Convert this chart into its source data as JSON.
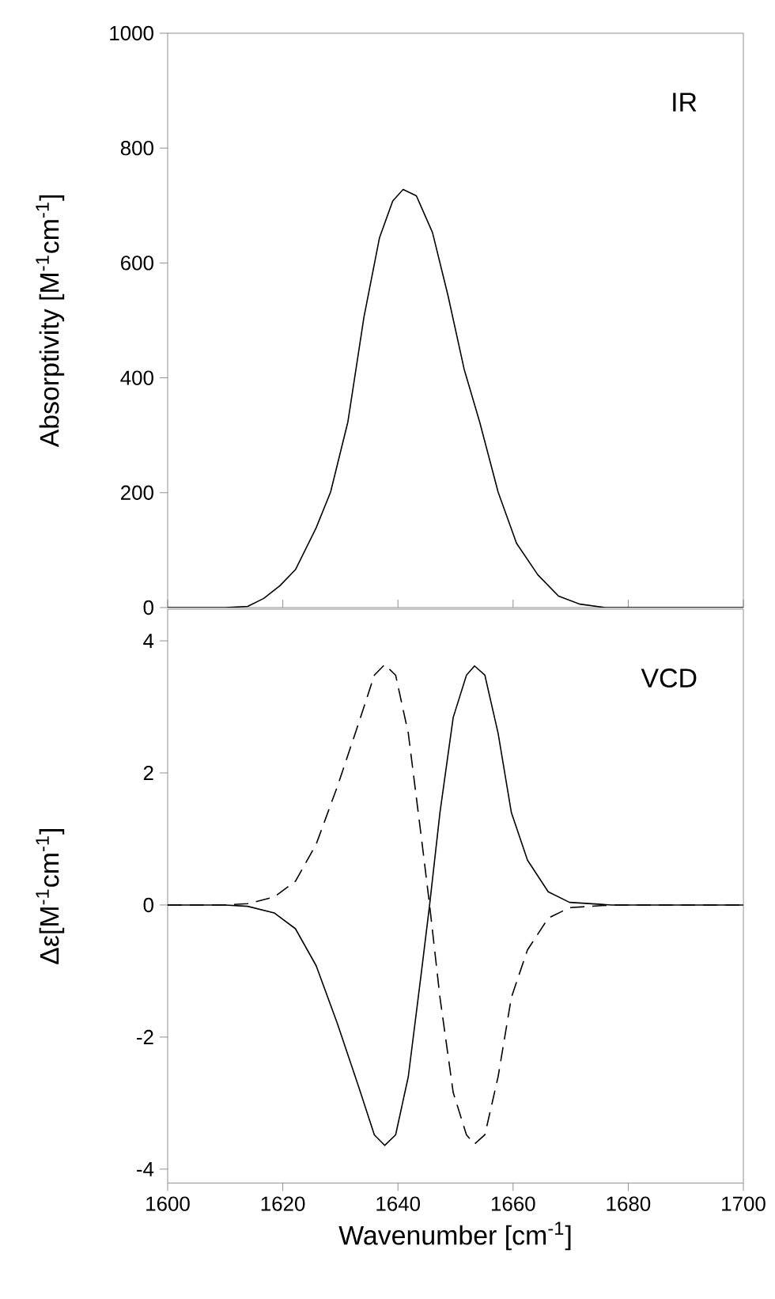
{
  "chart_data": [
    {
      "type": "line",
      "ylabel": "Absorptivity [M$^{-1}$cm$^{-1}$]",
      "annotations": [
        "IR"
      ],
      "tick_labels": "y",
      "xlim": [
        1600,
        1700
      ],
      "xticks": [
        1600,
        1620,
        1640,
        1660,
        1680,
        1700
      ],
      "ylim": [
        0,
        1000
      ],
      "yticks": [
        0,
        200,
        400,
        600,
        800,
        1000
      ],
      "line_style": "solid",
      "series": [
        {
          "color": "#000000",
          "x": [
            1600,
            1610,
            1613.9,
            1616.7,
            1619.5,
            1622.2,
            1625.8,
            1628.3,
            1631.3,
            1634.1,
            1636.8,
            1639.1,
            1640.9,
            1643.2,
            1646,
            1648.7,
            1651.5,
            1654.2,
            1657.4,
            1660.6,
            1664.3,
            1667.9,
            1671.6,
            1676,
            1690,
            1700
          ],
          "values": [
            0,
            0,
            2,
            16,
            38,
            66,
            139,
            201,
            323,
            506,
            644,
            708,
            728,
            717,
            653,
            543,
            415,
            323,
            201,
            112,
            57,
            20,
            6,
            0,
            0,
            0
          ]
        }
      ]
    },
    {
      "type": "line",
      "xlabel": "Wavenumber [cm$^{-1}$]",
      "ylabel": "Δε[M$^{-1}$cm$^{-1}$]",
      "annotations": [
        "VCD"
      ],
      "xlim": [
        1600,
        1700
      ],
      "xticks": [
        1600,
        1620,
        1640,
        1660,
        1680,
        1700
      ],
      "ylim": [
        -4.21,
        4.48
      ],
      "yticks": [
        -4,
        -2,
        0,
        2,
        4
      ],
      "series": [
        {
          "color": "#000000",
          "line_style": "solid",
          "x": [
            1600,
            1610,
            1613.9,
            1618.5,
            1622.2,
            1625.8,
            1629.5,
            1633.2,
            1635.9,
            1637.7,
            1639.6,
            1641.8,
            1644.1,
            1645.5,
            1647.3,
            1649.6,
            1651.9,
            1653.3,
            1655.1,
            1657.4,
            1659.7,
            1662.5,
            1666.1,
            1669.8,
            1677.1,
            1690,
            1700
          ],
          "values": [
            0,
            0,
            -0.02,
            -0.12,
            -0.36,
            -0.92,
            -1.8,
            -2.76,
            -3.48,
            -3.64,
            -3.48,
            -2.6,
            -1.0,
            0,
            1.4,
            2.84,
            3.48,
            3.62,
            3.48,
            2.6,
            1.4,
            0.68,
            0.2,
            0.04,
            0,
            0,
            0
          ]
        },
        {
          "color": "#000000",
          "line_style": "dashed",
          "x": [
            1600,
            1610,
            1613.9,
            1618.5,
            1622.2,
            1625.8,
            1629.5,
            1633.2,
            1635.9,
            1637.7,
            1639.6,
            1641.8,
            1644.1,
            1645.5,
            1647.3,
            1649.6,
            1651.9,
            1653.3,
            1655.1,
            1657.4,
            1659.7,
            1662.5,
            1666.1,
            1669.8,
            1677.1,
            1690,
            1700
          ],
          "values": [
            0,
            0,
            0.02,
            0.12,
            0.36,
            0.92,
            1.8,
            2.76,
            3.48,
            3.64,
            3.48,
            2.6,
            1.0,
            0,
            -1.4,
            -2.84,
            -3.48,
            -3.62,
            -3.48,
            -2.6,
            -1.4,
            -0.68,
            -0.2,
            -0.04,
            0,
            0,
            0
          ]
        }
      ]
    }
  ]
}
